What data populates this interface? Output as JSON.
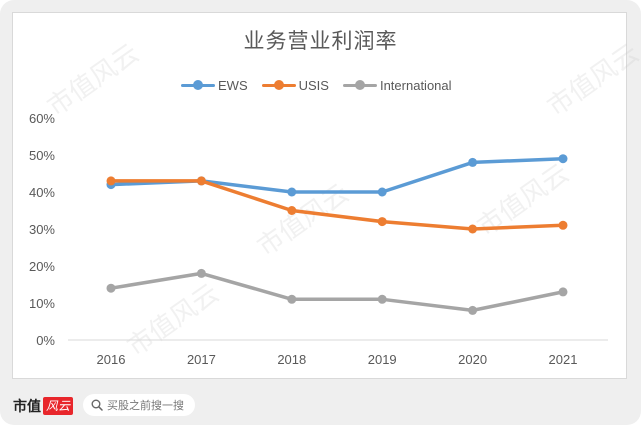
{
  "chart_data": {
    "type": "line",
    "title": "业务营业利润率",
    "xlabel": "",
    "ylabel": "",
    "categories": [
      "2016",
      "2017",
      "2018",
      "2019",
      "2020",
      "2021"
    ],
    "series": [
      {
        "name": "EWS",
        "color": "#5b9bd5",
        "values": [
          42,
          43,
          40,
          40,
          48,
          49
        ]
      },
      {
        "name": "USIS",
        "color": "#ed7d31",
        "values": [
          43,
          43,
          35,
          32,
          30,
          31
        ]
      },
      {
        "name": "International",
        "color": "#a5a5a5",
        "values": [
          14,
          18,
          11,
          11,
          8,
          13
        ]
      }
    ],
    "yticks": [
      "0%",
      "10%",
      "20%",
      "30%",
      "40%",
      "50%",
      "60%"
    ],
    "ylim": [
      0,
      60
    ],
    "y_unit": "%",
    "grid": false,
    "legend_position": "top"
  },
  "footer": {
    "brand_text": "市值",
    "brand_badge": "风云",
    "search_icon": "search-icon",
    "search_placeholder": "买股之前搜一搜"
  },
  "watermark_text": "市值风云"
}
